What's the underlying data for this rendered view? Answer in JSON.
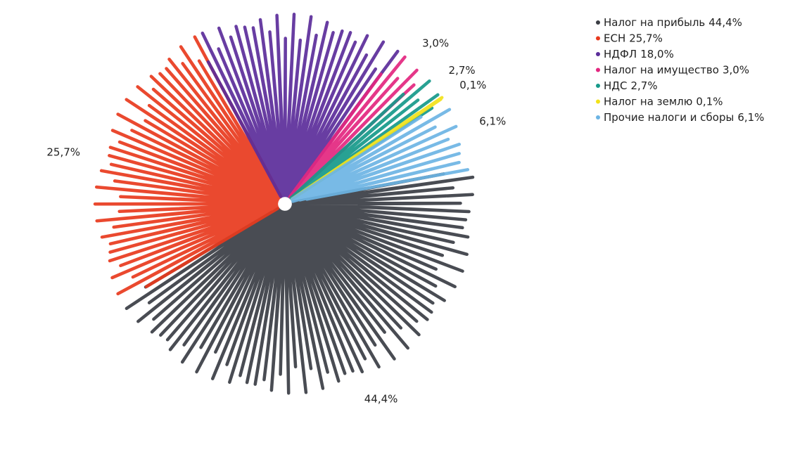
{
  "chart_data": {
    "type": "pie",
    "categories": [
      "Налог на прибыль",
      "ЕСН",
      "НДФЛ",
      "Налог на имущество",
      "НДС",
      "Налог на землю",
      "Прочие налоги и сборы"
    ],
    "values": [
      44.4,
      25.7,
      18.0,
      3.0,
      2.7,
      0.1,
      6.1
    ],
    "value_labels": [
      "44,4%",
      "25,7%",
      "18,0%",
      "3,0%",
      "2,7%",
      "0,1%",
      "6,1%"
    ],
    "colors": [
      "#3a3d44",
      "#e8391d",
      "#5b2d9a",
      "#e3267f",
      "#16998a",
      "#f2e21a",
      "#6cb4e4"
    ]
  }
}
